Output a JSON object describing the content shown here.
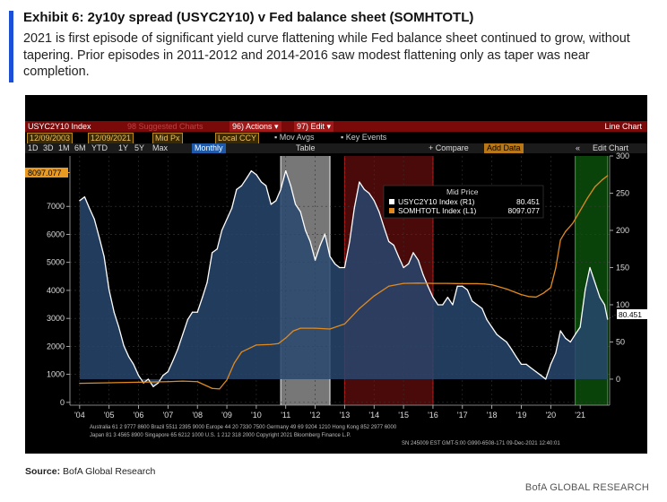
{
  "exhibit": {
    "title": "Exhibit 6: 2y10y spread (USYC2Y10)  v Fed balance sheet (SOMHTOTL)",
    "subtitle": "2021 is first episode of significant yield curve flattening while Fed balance sheet continued to grow, without tapering. Prior episodes in 2011-2012 and 2014-2016 saw modest flattening only as taper was near completion."
  },
  "toolbar": {
    "ticker": "USYC2Y10 Index",
    "suggested": "98 Suggested Charts",
    "actions": "96) Actions ▾",
    "edit": "97) Edit ▾",
    "mode": "Line Chart",
    "date_from": "12/09/2003",
    "date_to": "12/09/2021",
    "price": "Mid Px",
    "currency": "Local CCY",
    "mov_avgs": "Mov Avgs",
    "key_events": "Key Events",
    "periods": [
      "1D",
      "3D",
      "1M",
      "6M",
      "YTD",
      "1Y",
      "5Y",
      "Max"
    ],
    "frequency": "Monthly",
    "table": "Table",
    "compare": "+ Compare",
    "add_data": "Add Data",
    "edit_chart": "Edit Chart"
  },
  "colors": {
    "accent": "#1c4fd8",
    "spread_line": "#ffffff",
    "spread_fill": "#28466e",
    "balance_line": "#e08a1e",
    "balance_tag": "#e89a22",
    "spread_tag": "#ffffff",
    "shade_white": "#d8d8d8",
    "shade_red": "#b01818",
    "shade_green": "#18a018",
    "bloomberg_header": "#7a0a0a"
  },
  "chart_data": {
    "type": "line",
    "title": "Mid Price",
    "x_tick_labels": [
      "'04",
      "'05",
      "'06",
      "'07",
      "'08",
      "'09",
      "'10",
      "'11",
      "'12",
      "'13",
      "'14",
      "'15",
      "'16",
      "'17",
      "'18",
      "'19",
      "'20",
      "'21"
    ],
    "left_axis": {
      "label": "SOMHTOTL (L1)",
      "ticks": [
        0,
        1000,
        2000,
        3000,
        4000,
        5000,
        6000,
        7000
      ],
      "range": [
        -100,
        8800
      ]
    },
    "right_axis": {
      "label": "USYC2Y10 (R1)",
      "ticks": [
        0,
        50,
        100,
        150,
        200,
        250,
        300
      ],
      "range": [
        -35,
        300
      ]
    },
    "legend": [
      {
        "name": "USYC2Y10 Index  (R1)",
        "value": "80.451"
      },
      {
        "name": "SOMHTOTL Index  (L1)",
        "value": "8097.077"
      }
    ],
    "last_value_tags": {
      "balance": "8097.077",
      "spread": "80.451"
    },
    "series": [
      {
        "name": "USYC2Y10 Index",
        "axis": "right",
        "x": [
          2004.0,
          2004.17,
          2004.33,
          2004.5,
          2004.67,
          2004.83,
          2005.0,
          2005.17,
          2005.33,
          2005.5,
          2005.67,
          2005.83,
          2006.0,
          2006.17,
          2006.33,
          2006.5,
          2006.67,
          2006.83,
          2007.0,
          2007.17,
          2007.33,
          2007.5,
          2007.67,
          2007.83,
          2008.0,
          2008.17,
          2008.33,
          2008.5,
          2008.67,
          2008.83,
          2009.0,
          2009.17,
          2009.33,
          2009.5,
          2009.67,
          2009.83,
          2010.0,
          2010.17,
          2010.33,
          2010.5,
          2010.67,
          2010.83,
          2011.0,
          2011.17,
          2011.33,
          2011.5,
          2011.67,
          2011.83,
          2012.0,
          2012.17,
          2012.33,
          2012.5,
          2012.67,
          2012.83,
          2013.0,
          2013.17,
          2013.33,
          2013.5,
          2013.67,
          2013.83,
          2014.0,
          2014.17,
          2014.33,
          2014.5,
          2014.67,
          2014.83,
          2015.0,
          2015.17,
          2015.33,
          2015.5,
          2015.67,
          2015.83,
          2016.0,
          2016.17,
          2016.33,
          2016.5,
          2016.67,
          2016.83,
          2017.0,
          2017.17,
          2017.33,
          2017.5,
          2017.67,
          2017.83,
          2018.0,
          2018.17,
          2018.33,
          2018.5,
          2018.67,
          2018.83,
          2019.0,
          2019.17,
          2019.33,
          2019.5,
          2019.67,
          2019.83,
          2020.0,
          2020.17,
          2020.33,
          2020.5,
          2020.67,
          2020.83,
          2021.0,
          2021.17,
          2021.33,
          2021.5,
          2021.67,
          2021.83,
          2021.93
        ],
        "values": [
          240,
          245,
          230,
          215,
          190,
          165,
          120,
          90,
          70,
          45,
          30,
          20,
          5,
          -5,
          0,
          -10,
          -5,
          5,
          10,
          25,
          40,
          60,
          80,
          90,
          90,
          110,
          130,
          170,
          175,
          200,
          215,
          230,
          255,
          260,
          270,
          280,
          275,
          265,
          260,
          235,
          240,
          255,
          280,
          260,
          235,
          225,
          200,
          185,
          160,
          180,
          195,
          165,
          155,
          150,
          150,
          185,
          230,
          265,
          255,
          250,
          240,
          225,
          205,
          185,
          180,
          165,
          150,
          155,
          170,
          160,
          140,
          125,
          110,
          100,
          100,
          110,
          100,
          125,
          125,
          120,
          105,
          100,
          95,
          80,
          70,
          60,
          55,
          50,
          40,
          30,
          20,
          20,
          15,
          10,
          5,
          0,
          20,
          35,
          65,
          55,
          50,
          60,
          70,
          120,
          150,
          130,
          110,
          100,
          80.451
        ]
      },
      {
        "name": "SOMHTOTL Index",
        "axis": "left",
        "x": [
          2004.0,
          2005.0,
          2006.0,
          2007.0,
          2007.5,
          2008.0,
          2008.5,
          2008.75,
          2009.0,
          2009.25,
          2009.5,
          2010.0,
          2010.5,
          2010.75,
          2011.0,
          2011.25,
          2011.5,
          2012.0,
          2012.5,
          2013.0,
          2013.5,
          2014.0,
          2014.5,
          2015.0,
          2015.5,
          2016.0,
          2016.5,
          2017.0,
          2017.5,
          2017.75,
          2018.0,
          2018.5,
          2019.0,
          2019.25,
          2019.5,
          2019.75,
          2020.0,
          2020.17,
          2020.33,
          2020.5,
          2020.75,
          2021.0,
          2021.25,
          2021.5,
          2021.75,
          2021.93
        ],
        "values": [
          680,
          700,
          720,
          740,
          760,
          740,
          500,
          480,
          800,
          1400,
          1800,
          2050,
          2070,
          2100,
          2300,
          2550,
          2650,
          2650,
          2620,
          2800,
          3350,
          3800,
          4150,
          4250,
          4260,
          4250,
          4250,
          4240,
          4240,
          4230,
          4200,
          4050,
          3850,
          3780,
          3760,
          3900,
          4100,
          4800,
          5800,
          6100,
          6400,
          6850,
          7300,
          7700,
          7950,
          8097.077
        ]
      }
    ],
    "shaded_regions": [
      {
        "from": 2010.83,
        "to": 2012.5,
        "color": "white"
      },
      {
        "from": 2013.0,
        "to": 2016.0,
        "color": "red"
      },
      {
        "from": 2020.83,
        "to": 2021.93,
        "color": "green"
      }
    ]
  },
  "terminal_footer": {
    "line1": "Australia 61 2 9777 8600 Brazil 5511 2395 9000 Europe 44 20 7330 7500 Germany 49 69 9204 1210 Hong Kong 852 2977 6000",
    "line2": "Japan 81 3 4565 8900        Singapore 65 6212 1000        U.S. 1 212 318 2000        Copyright 2021 Bloomberg Finance L.P.",
    "line3": "SN 245009 EST  GMT-5:00 G990-6508-171 09-Dec-2021 12:40:01"
  },
  "source_label": "Source:",
  "source_text": "BofA Global Research",
  "brand": "BofA GLOBAL RESEARCH"
}
